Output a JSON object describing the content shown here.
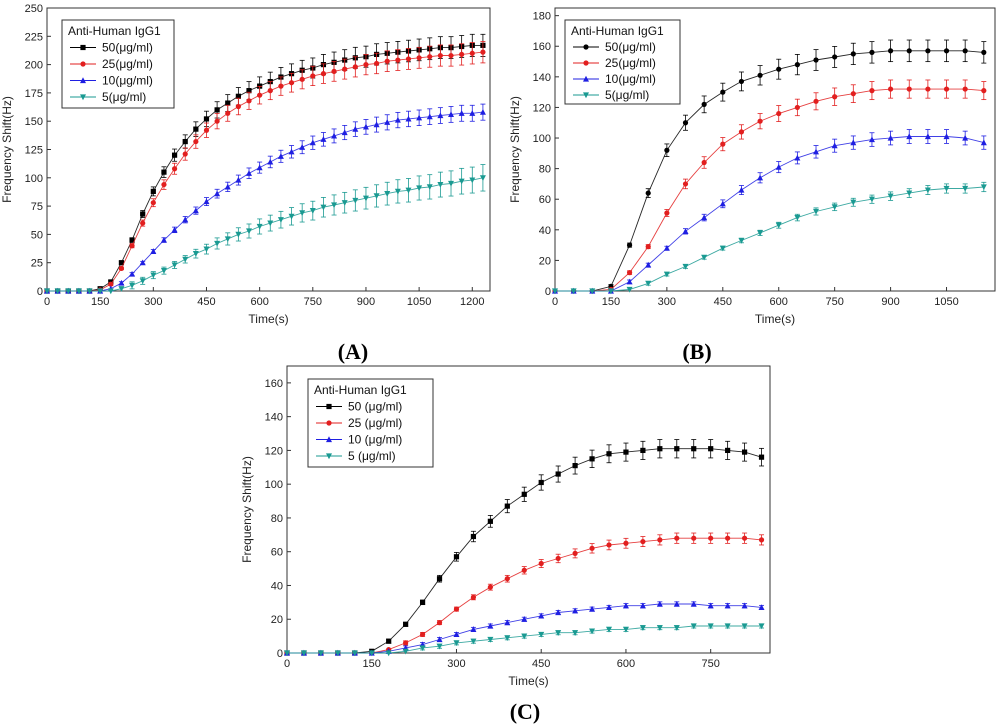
{
  "figure": {
    "panels": [
      "(A)",
      "(B)",
      "(C)"
    ]
  },
  "chart_data": [
    {
      "id": "A",
      "panel_label": "(A)",
      "type": "line",
      "xlabel": "Time(s)",
      "ylabel": "Frequency Shift(Hz)",
      "xlim": [
        0,
        1250
      ],
      "ylim": [
        0,
        250
      ],
      "xticks": [
        0,
        150,
        300,
        450,
        600,
        750,
        900,
        1050,
        1200
      ],
      "yticks": [
        0,
        25,
        50,
        75,
        100,
        125,
        150,
        175,
        200,
        225,
        250
      ],
      "legend_title": "Anti-Human IgG1",
      "legend_position": "top-left",
      "series": [
        {
          "name": "50(μg/ml)",
          "color": "#000000",
          "marker": "square",
          "x": [
            0,
            30,
            60,
            90,
            120,
            150,
            180,
            210,
            240,
            270,
            300,
            330,
            360,
            390,
            420,
            450,
            480,
            510,
            540,
            570,
            600,
            630,
            660,
            690,
            720,
            750,
            780,
            810,
            840,
            870,
            900,
            930,
            960,
            990,
            1020,
            1050,
            1080,
            1110,
            1140,
            1170,
            1200,
            1230
          ],
          "y": [
            0,
            0,
            0,
            0,
            0,
            2,
            8,
            25,
            45,
            68,
            88,
            105,
            120,
            132,
            143,
            152,
            160,
            166,
            172,
            177,
            181,
            185,
            189,
            192,
            195,
            197,
            200,
            202,
            204,
            206,
            207,
            209,
            210,
            211,
            212,
            213,
            214,
            215,
            215,
            216,
            217,
            217
          ]
        },
        {
          "name": "25(μg/ml)",
          "color": "#e21f1f",
          "marker": "circle",
          "x": [
            0,
            30,
            60,
            90,
            120,
            150,
            180,
            210,
            240,
            270,
            300,
            330,
            360,
            390,
            420,
            450,
            480,
            510,
            540,
            570,
            600,
            630,
            660,
            690,
            720,
            750,
            780,
            810,
            840,
            870,
            900,
            930,
            960,
            990,
            1020,
            1050,
            1080,
            1110,
            1140,
            1170,
            1200,
            1230
          ],
          "y": [
            0,
            0,
            0,
            0,
            0,
            1,
            6,
            20,
            40,
            60,
            78,
            94,
            108,
            121,
            132,
            142,
            150,
            157,
            163,
            168,
            173,
            177,
            181,
            184,
            187,
            190,
            192,
            194,
            196,
            198,
            200,
            201,
            203,
            204,
            205,
            206,
            207,
            208,
            208,
            209,
            210,
            211
          ]
        },
        {
          "name": "10(μg/ml)",
          "color": "#1f1fe2",
          "marker": "triangle-up",
          "x": [
            0,
            30,
            60,
            90,
            120,
            150,
            180,
            210,
            240,
            270,
            300,
            330,
            360,
            390,
            420,
            450,
            480,
            510,
            540,
            570,
            600,
            630,
            660,
            690,
            720,
            750,
            780,
            810,
            840,
            870,
            900,
            930,
            960,
            990,
            1020,
            1050,
            1080,
            1110,
            1140,
            1170,
            1200,
            1230
          ],
          "y": [
            0,
            0,
            0,
            0,
            0,
            0,
            2,
            7,
            15,
            25,
            35,
            45,
            54,
            63,
            71,
            79,
            86,
            92,
            98,
            104,
            109,
            114,
            119,
            123,
            127,
            131,
            134,
            137,
            140,
            143,
            145,
            147,
            149,
            151,
            152,
            153,
            154,
            155,
            156,
            157,
            157,
            158
          ]
        },
        {
          "name": "5(μg/ml)",
          "color": "#1a9a92",
          "marker": "triangle-down",
          "x": [
            0,
            30,
            60,
            90,
            120,
            150,
            180,
            210,
            240,
            270,
            300,
            330,
            360,
            390,
            420,
            450,
            480,
            510,
            540,
            570,
            600,
            630,
            660,
            690,
            720,
            750,
            780,
            810,
            840,
            870,
            900,
            930,
            960,
            990,
            1020,
            1050,
            1080,
            1110,
            1140,
            1170,
            1200,
            1230
          ],
          "y": [
            0,
            0,
            0,
            0,
            0,
            0,
            0,
            2,
            5,
            9,
            14,
            18,
            23,
            28,
            33,
            37,
            42,
            46,
            50,
            53,
            57,
            60,
            63,
            66,
            69,
            71,
            74,
            76,
            78,
            80,
            82,
            84,
            86,
            88,
            89,
            91,
            92,
            94,
            95,
            97,
            98,
            100
          ]
        }
      ]
    },
    {
      "id": "B",
      "panel_label": "(B)",
      "type": "line",
      "xlabel": "Time(s)",
      "ylabel": "Frequency Shift(Hz)",
      "xlim": [
        0,
        1180
      ],
      "ylim": [
        0,
        185
      ],
      "xticks": [
        0,
        150,
        300,
        450,
        600,
        750,
        900,
        1050
      ],
      "yticks": [
        0,
        20,
        40,
        60,
        80,
        100,
        120,
        140,
        160,
        180
      ],
      "legend_title": "Anti-Human IgG1",
      "legend_position": "top-left",
      "series": [
        {
          "name": "50(μg/ml)",
          "color": "#000000",
          "marker": "circle",
          "x": [
            0,
            50,
            100,
            150,
            200,
            250,
            300,
            350,
            400,
            450,
            500,
            550,
            600,
            650,
            700,
            750,
            800,
            850,
            900,
            950,
            1000,
            1050,
            1100,
            1150
          ],
          "y": [
            0,
            0,
            0,
            3,
            30,
            64,
            92,
            110,
            122,
            130,
            137,
            141,
            145,
            148,
            151,
            153,
            155,
            156,
            157,
            157,
            157,
            157,
            157,
            156
          ]
        },
        {
          "name": "25(μg/ml)",
          "color": "#e21f1f",
          "marker": "circle",
          "x": [
            0,
            50,
            100,
            150,
            200,
            250,
            300,
            350,
            400,
            450,
            500,
            550,
            600,
            650,
            700,
            750,
            800,
            850,
            900,
            950,
            1000,
            1050,
            1100,
            1150
          ],
          "y": [
            0,
            0,
            0,
            1,
            12,
            29,
            51,
            70,
            84,
            96,
            104,
            111,
            116,
            120,
            124,
            127,
            129,
            131,
            132,
            132,
            132,
            132,
            132,
            131
          ]
        },
        {
          "name": "10(μg/ml)",
          "color": "#1f1fe2",
          "marker": "triangle-up",
          "x": [
            0,
            50,
            100,
            150,
            200,
            250,
            300,
            350,
            400,
            450,
            500,
            550,
            600,
            650,
            700,
            750,
            800,
            850,
            900,
            950,
            1000,
            1050,
            1100,
            1150
          ],
          "y": [
            0,
            0,
            0,
            0,
            6,
            17,
            28,
            39,
            48,
            57,
            66,
            74,
            81,
            87,
            91,
            95,
            97,
            99,
            100,
            101,
            101,
            101,
            100,
            97
          ]
        },
        {
          "name": "5(μg/ml)",
          "color": "#1a9a92",
          "marker": "triangle-down",
          "x": [
            0,
            50,
            100,
            150,
            200,
            250,
            300,
            350,
            400,
            450,
            500,
            550,
            600,
            650,
            700,
            750,
            800,
            850,
            900,
            950,
            1000,
            1050,
            1100,
            1150
          ],
          "y": [
            0,
            0,
            0,
            0,
            1,
            5,
            11,
            16,
            22,
            28,
            33,
            38,
            43,
            48,
            52,
            55,
            58,
            60,
            62,
            64,
            66,
            67,
            67,
            68
          ]
        }
      ]
    },
    {
      "id": "C",
      "panel_label": "(C)",
      "type": "line",
      "xlabel": "Time(s)",
      "ylabel": "Frequency Shift(Hz)",
      "xlim": [
        0,
        855
      ],
      "ylim": [
        0,
        170
      ],
      "xticks": [
        0,
        150,
        300,
        450,
        600,
        750
      ],
      "yticks": [
        0,
        20,
        40,
        60,
        80,
        100,
        120,
        140,
        160
      ],
      "legend_title": "Anti-Human IgG1",
      "legend_position": "top-left",
      "series": [
        {
          "name": "50 (μg/ml)",
          "color": "#000000",
          "marker": "square",
          "x": [
            0,
            30,
            60,
            90,
            120,
            150,
            180,
            210,
            240,
            270,
            300,
            330,
            360,
            390,
            420,
            450,
            480,
            510,
            540,
            570,
            600,
            630,
            660,
            690,
            720,
            750,
            780,
            810,
            840
          ],
          "y": [
            0,
            0,
            0,
            0,
            0,
            1,
            7,
            17,
            30,
            44,
            57,
            69,
            78,
            87,
            94,
            101,
            106,
            111,
            115,
            118,
            119,
            120,
            121,
            121,
            121,
            121,
            120,
            119,
            116
          ]
        },
        {
          "name": "25 (μg/ml)",
          "color": "#e21f1f",
          "marker": "circle",
          "x": [
            0,
            30,
            60,
            90,
            120,
            150,
            180,
            210,
            240,
            270,
            300,
            330,
            360,
            390,
            420,
            450,
            480,
            510,
            540,
            570,
            600,
            630,
            660,
            690,
            720,
            750,
            780,
            810,
            840
          ],
          "y": [
            0,
            0,
            0,
            0,
            0,
            0,
            2,
            6,
            11,
            18,
            26,
            33,
            39,
            44,
            49,
            53,
            56,
            59,
            62,
            64,
            65,
            66,
            67,
            68,
            68,
            68,
            68,
            68,
            67
          ]
        },
        {
          "name": "10 (μg/ml)",
          "color": "#1f1fe2",
          "marker": "triangle-up",
          "x": [
            0,
            30,
            60,
            90,
            120,
            150,
            180,
            210,
            240,
            270,
            300,
            330,
            360,
            390,
            420,
            450,
            480,
            510,
            540,
            570,
            600,
            630,
            660,
            690,
            720,
            750,
            780,
            810,
            840
          ],
          "y": [
            0,
            0,
            0,
            0,
            0,
            0,
            1,
            3,
            5,
            8,
            11,
            14,
            16,
            18,
            20,
            22,
            24,
            25,
            26,
            27,
            28,
            28,
            29,
            29,
            29,
            28,
            28,
            28,
            27
          ]
        },
        {
          "name": "5 (μg/ml)",
          "color": "#1a9a92",
          "marker": "triangle-down",
          "x": [
            0,
            30,
            60,
            90,
            120,
            150,
            180,
            210,
            240,
            270,
            300,
            330,
            360,
            390,
            420,
            450,
            480,
            510,
            540,
            570,
            600,
            630,
            660,
            690,
            720,
            750,
            780,
            810,
            840
          ],
          "y": [
            0,
            0,
            0,
            0,
            0,
            0,
            0,
            1,
            3,
            4,
            6,
            7,
            8,
            9,
            10,
            11,
            12,
            12,
            13,
            14,
            14,
            15,
            15,
            15,
            16,
            16,
            16,
            16,
            16
          ]
        }
      ]
    }
  ]
}
